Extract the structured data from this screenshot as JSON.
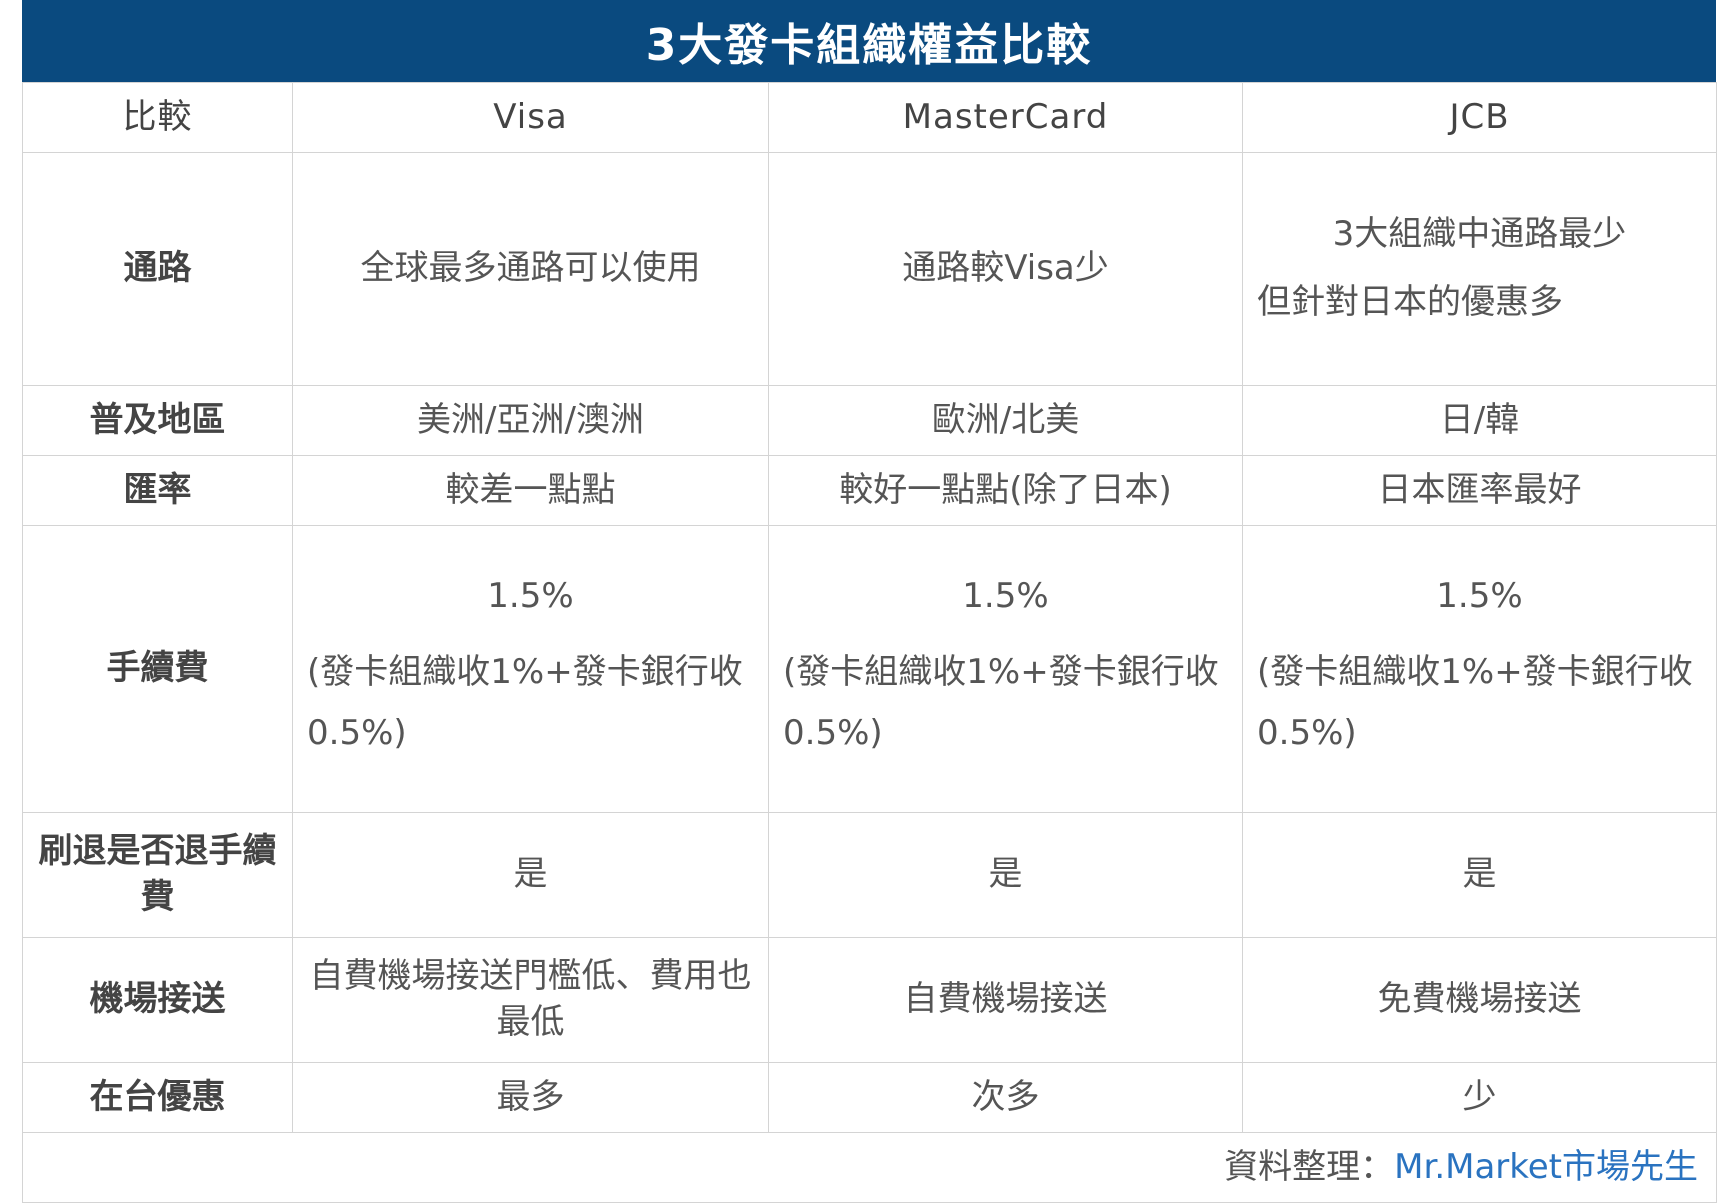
{
  "title": "3大發卡組織權益比較",
  "header": {
    "label": "比較",
    "visa": "Visa",
    "mastercard": "MasterCard",
    "jcb": "JCB"
  },
  "rows": [
    {
      "label": "通路",
      "visa": "全球最多通路可以使用",
      "mastercard": "通路較Visa少",
      "jcb_line1": "3大組織中通路最少",
      "jcb_line2": "但針對日本的優惠多"
    },
    {
      "label": "普及地區",
      "visa": "美洲/亞洲/澳洲",
      "mastercard": "歐洲/北美",
      "jcb": "日/韓"
    },
    {
      "label": "匯率",
      "visa": "較差一點點",
      "mastercard": "較好一點點(除了日本)",
      "jcb": "日本匯率最好"
    },
    {
      "label": "手續費",
      "visa_main": "1.5%",
      "visa_sub": "(發卡組織收1%+發卡銀行收0.5%)",
      "mastercard_main": "1.5%",
      "mastercard_sub": "(發卡組織收1%+發卡銀行收0.5%)",
      "jcb_main": "1.5%",
      "jcb_sub": "(發卡組織收1%+發卡銀行收0.5%)"
    },
    {
      "label": "刷退是否退手續費",
      "visa": "是",
      "mastercard": "是",
      "jcb": "是"
    },
    {
      "label": "機場接送",
      "visa": "自費機場接送門檻低、費用也最低",
      "mastercard": "自費機場接送",
      "jcb": "免費機場接送"
    },
    {
      "label": "在台優惠",
      "visa": "最多",
      "mastercard": "次多",
      "jcb": "少"
    }
  ],
  "footer": {
    "prefix": "資料整理：",
    "brand": "Mr.Market市場先生"
  },
  "colors": {
    "title_bg": "#0a4a7f",
    "brand": "#2a73c0",
    "border": "#d4d4d4"
  }
}
